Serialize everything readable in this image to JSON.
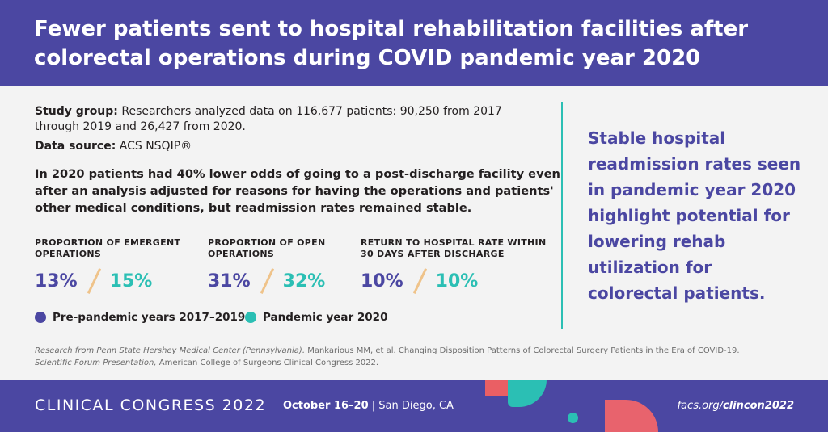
{
  "header": {
    "title": "Fewer patients sent to hospital rehabilitation facilities after colorectal operations during COVID pandemic year 2020"
  },
  "study": {
    "study_group_label": "Study group:",
    "study_group_text": " Researchers analyzed data on 116,677 patients: 90,250 from 2017 through 2019 and 26,427 from 2020.",
    "data_source_label": "Data source:",
    "data_source_text": " ACS NSQIP®"
  },
  "finding": "In 2020 patients had 40% lower odds of going to a post-discharge facility even after an analysis adjusted for reasons for having the operations and patients' other medical conditions, but readmission rates remained stable.",
  "stats": [
    {
      "label": "Proportion of emergent operations",
      "pre": "13%",
      "post": "15%"
    },
    {
      "label": "Proportion of open operations",
      "pre": "31%",
      "post": "32%"
    },
    {
      "label": "Return to hospital rate within 30 days after discharge",
      "pre": "10%",
      "post": "10%"
    }
  ],
  "legend": {
    "pre_label": "Pre-pandemic years 2017–2019",
    "post_label": "Pandemic year 2020"
  },
  "callout": "Stable hospital readmission rates seen in pandemic year 2020 highlight potential for lowering rehab utilization for colorectal patients.",
  "citation": {
    "line1_italic": "Research from Penn State Hershey Medical Center (Pennsylvania).",
    "line1_rest": " Mankarious MM, et al. Changing Disposition Patterns of Colorectal Surgery Patients in the Era of COVID-19.",
    "line2_italic": "Scientific Forum Presentation,",
    "line2_rest": " American College of Surgeons Clinical Congress 2022."
  },
  "footer": {
    "congress": "CLINICAL CONGRESS 2022",
    "dates_bold": "October 16–20",
    "dates_rest": " | San Diego, CA",
    "url_prefix": "facs.org/",
    "url_bold": "clincon2022"
  },
  "colors": {
    "brand_purple": "#4b47a2",
    "teal": "#2bbfb4",
    "slash_tan": "#efc38a",
    "coral": "#ea5f64"
  }
}
